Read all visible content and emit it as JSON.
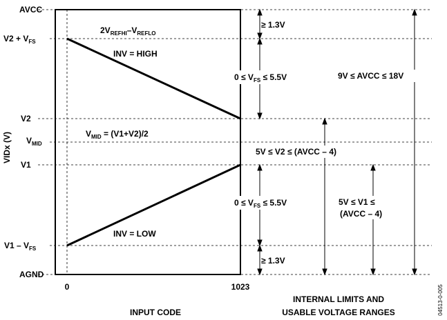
{
  "y_axis": {
    "title": "VIDx (V)",
    "levels": [
      {
        "name": "avcc",
        "main": "AVCC",
        "sub": "",
        "tail": ""
      },
      {
        "name": "v2-plus-vfs",
        "main": "V2 + V",
        "sub": "FS",
        "tail": ""
      },
      {
        "name": "v2",
        "main": "V2",
        "sub": "",
        "tail": ""
      },
      {
        "name": "vmid",
        "main": "V",
        "sub": "MID",
        "tail": ""
      },
      {
        "name": "v1",
        "main": "V1",
        "sub": "",
        "tail": ""
      },
      {
        "name": "v1-minus-vfs",
        "main": "V1 – V",
        "sub": "FS",
        "tail": ""
      },
      {
        "name": "agnd",
        "main": "AGND",
        "sub": "",
        "tail": ""
      }
    ]
  },
  "x_axis": {
    "title": "INPUT CODE",
    "ticks": [
      "0",
      "1023"
    ]
  },
  "plot_labels": {
    "top_formula": {
      "p1": "2V",
      "s1": "REFHI",
      "p2": "–V",
      "s2": "REFLO"
    },
    "inv_high": "INV = HIGH",
    "inv_low": "INV = LOW",
    "vmid_formula": {
      "p1": "V",
      "s1": "MID",
      "p2": " = (V1+V2)/2"
    }
  },
  "ranges": {
    "ge_top": "≥ 1.3V",
    "vfs_top": {
      "p1": "0 ≤ V",
      "s1": "FS",
      "p2": " ≤ 5.5V"
    },
    "avcc_range": "9V ≤ AVCC ≤ 18V",
    "v2_range": "5V ≤ V2 ≤ (AVCC – 4)",
    "vfs_bottom": {
      "p1": "0 ≤ V",
      "s1": "FS",
      "p2": " ≤ 5.5V"
    },
    "v1_range_line1": "5V ≤ V1 ≤",
    "v1_range_line2": "(AVCC – 4)",
    "ge_bottom": "≥ 1.3V"
  },
  "right_title": {
    "line1": "INTERNAL LIMITS AND",
    "line2": "USABLE VOLTAGE RANGES"
  },
  "figure_id": "04513-0-005"
}
